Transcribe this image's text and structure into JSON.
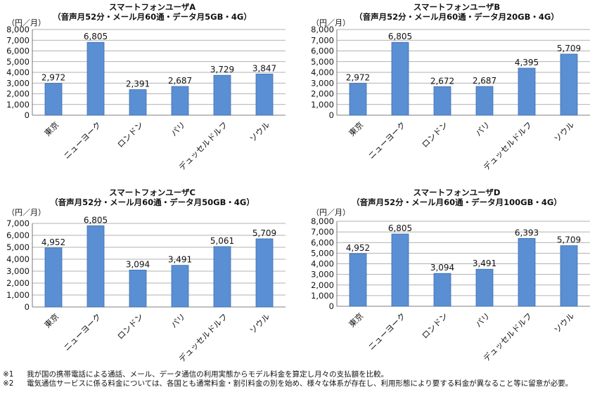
{
  "chart_data": [
    {
      "type": "bar",
      "title": "スマートフォンユーザA",
      "subtitle": "（音声月52分・メール月60通・データ月5GB・4G）",
      "ylabel": "（円／月）",
      "ylim": [
        0,
        8000
      ],
      "yticks": [
        "0",
        "1,000",
        "2,000",
        "3,000",
        "4,000",
        "5,000",
        "6,000",
        "7,000",
        "8,000"
      ],
      "categories": [
        "東京",
        "ニューヨーク",
        "ロンドン",
        "パリ",
        "デュッセルドルフ",
        "ソウル"
      ],
      "values": [
        2972,
        6805,
        2391,
        2687,
        3729,
        3847
      ],
      "labels": [
        "2,972",
        "6,805",
        "2,391",
        "2,687",
        "3,729",
        "3,847"
      ],
      "grid": true
    },
    {
      "type": "bar",
      "title": "スマートフォンユーザB",
      "subtitle": "（音声月52分・メール月60通・データ月20GB・4G）",
      "ylabel": "（円／月）",
      "ylim": [
        0,
        8000
      ],
      "yticks": [
        "0",
        "1,000",
        "2,000",
        "3,000",
        "4,000",
        "5,000",
        "6,000",
        "7,000",
        "8,000"
      ],
      "categories": [
        "東京",
        "ニューヨーク",
        "ロンドン",
        "パリ",
        "デュッセルドルフ",
        "ソウル"
      ],
      "values": [
        2972,
        6805,
        2672,
        2687,
        4395,
        5709
      ],
      "labels": [
        "2,972",
        "6,805",
        "2,672",
        "2,687",
        "4,395",
        "5,709"
      ],
      "grid": true
    },
    {
      "type": "bar",
      "title": "スマートフォンユーザC",
      "subtitle": "（音声月52分・メール月60通・データ月50GB・4G）",
      "ylabel": "（円／月）",
      "ylim": [
        0,
        7000
      ],
      "yticks": [
        "0",
        "1,000",
        "2,000",
        "3,000",
        "4,000",
        "5,000",
        "6,000",
        "7,000"
      ],
      "categories": [
        "東京",
        "ニューヨーク",
        "ロンドン",
        "パリ",
        "デュッセルドルフ",
        "ソウル"
      ],
      "values": [
        4952,
        6805,
        3094,
        3491,
        5061,
        5709
      ],
      "labels": [
        "4,952",
        "6,805",
        "3,094",
        "3,491",
        "5,061",
        "5,709"
      ],
      "grid": true
    },
    {
      "type": "bar",
      "title": "スマートフォンユーザD",
      "subtitle": "（音声月52分・メール月60通・データ月100GB・4G）",
      "ylabel": "（円／月）",
      "ylim": [
        0,
        8000
      ],
      "yticks": [
        "0",
        "1,000",
        "2,000",
        "3,000",
        "4,000",
        "5,000",
        "6,000",
        "7,000",
        "8,000"
      ],
      "categories": [
        "東京",
        "ニューヨーク",
        "ロンドン",
        "パリ",
        "デュッセルドルフ",
        "ソウル"
      ],
      "values": [
        4952,
        6805,
        3094,
        3491,
        6393,
        5709
      ],
      "labels": [
        "4,952",
        "6,805",
        "3,094",
        "3,491",
        "6,393",
        "5,709"
      ],
      "grid": true
    }
  ],
  "colors": {
    "bar_fill": "#5b8fd4",
    "bar_stroke": "#3d6fb0",
    "grid": "#999999",
    "axis": "#555555"
  },
  "notes": [
    {
      "mark": "※1",
      "text": "我が国の携帯電話による通話、メール、データ通信の利用実態からモデル料金を算定し月々の支払額を比較。"
    },
    {
      "mark": "※2",
      "text": "電気通信サービスに係る料金については、各国とも通常料金・割引料金の別を始め、様々な体系が存在し、利用形態により要する料金が異なること等に留意が必要。"
    }
  ]
}
